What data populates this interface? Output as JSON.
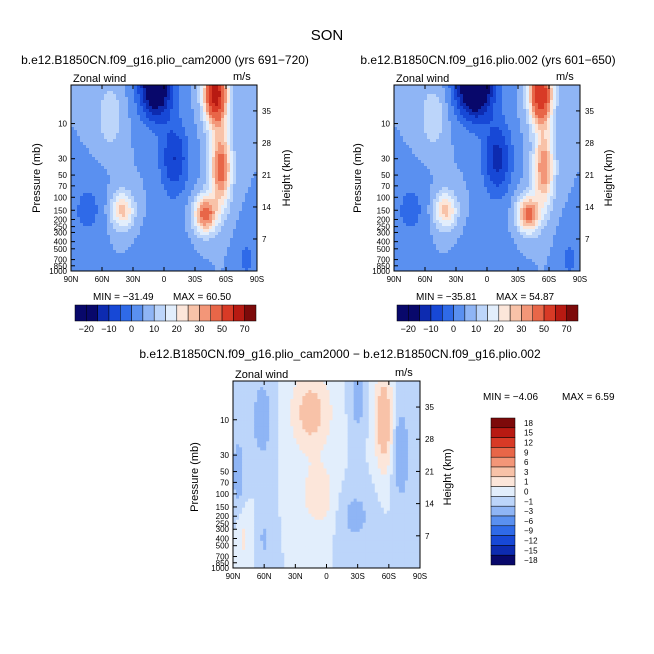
{
  "figure": {
    "title": "SON",
    "diff_title": "b.e12.B1850CN.f09_g16.plio_cam2000 − b.e12.B1850CN.f09_g16.plio.002"
  },
  "colors": {
    "full_palette": [
      "#08086b",
      "#0d2bb0",
      "#1748d6",
      "#2f6ae8",
      "#5a90f0",
      "#8fb5f5",
      "#bcd5fa",
      "#e2eefc",
      "#fce6da",
      "#f8c2a8",
      "#f39678",
      "#e86648",
      "#d83a26",
      "#b81a12",
      "#7d0a0a"
    ],
    "diff_palette": [
      "#08086b",
      "#0d2bb0",
      "#1748d6",
      "#2f6ae8",
      "#5a90f0",
      "#8fb5f5",
      "#bcd5fa",
      "#e2eefc",
      "#fce6da",
      "#f8c2a8",
      "#f39678",
      "#e86648",
      "#d83a26",
      "#b81a12",
      "#7d0a0a"
    ]
  },
  "chart_data": [
    {
      "type": "heatmap",
      "title": "b.e12.B1850CN.f09_g16.plio_cam2000 (yrs 691−720)",
      "left_label": "Zonal wind",
      "right_label": "m/s",
      "ylabel": "Pressure (mb)",
      "ylabel_right": "Height (km)",
      "x_ticks": [
        "90N",
        "60N",
        "30N",
        "0",
        "30S",
        "60S",
        "90S"
      ],
      "x_values": [
        90,
        60,
        30,
        0,
        -30,
        -60,
        -90
      ],
      "y_ticks": [
        "10",
        "30",
        "50",
        "70",
        "100",
        "150",
        "200",
        "250",
        "300",
        "400",
        "500",
        "700",
        "850",
        "1000"
      ],
      "y_values": [
        10,
        30,
        50,
        70,
        100,
        150,
        200,
        250,
        300,
        400,
        500,
        700,
        850,
        1000
      ],
      "y_range": [
        3,
        1000
      ],
      "height_ticks": [
        "35",
        "28",
        "21",
        "14",
        "7"
      ],
      "height_values": [
        35,
        28,
        21,
        14,
        7
      ],
      "min_label": "MIN =  −31.49",
      "max_label": "MAX =   60.50",
      "features": [
        {
          "lat": 74,
          "p": 150,
          "value": -7,
          "lat_width": 16,
          "logp_width": 0.4
        },
        {
          "lat": 52,
          "p": 8,
          "value": 10,
          "lat_width": 12,
          "logp_width": 0.4
        },
        {
          "lat": 40,
          "p": 150,
          "value": 22,
          "lat_width": 11,
          "logp_width": 0.25
        },
        {
          "lat": 0,
          "p": 600,
          "value": -3,
          "lat_width": 22,
          "logp_width": 0.5
        },
        {
          "lat": 8,
          "p": 3,
          "value": -32,
          "lat_width": 16,
          "logp_width": 0.45
        },
        {
          "lat": -10,
          "p": 30,
          "value": -15,
          "lat_width": 14,
          "logp_width": 0.5
        },
        {
          "lat": -50,
          "p": 4,
          "value": 56,
          "lat_width": 11,
          "logp_width": 0.4
        },
        {
          "lat": -55,
          "p": 40,
          "value": 35,
          "lat_width": 10,
          "logp_width": 0.5
        },
        {
          "lat": -40,
          "p": 170,
          "value": 34,
          "lat_width": 11,
          "logp_width": 0.25
        },
        {
          "lat": -80,
          "p": 700,
          "value": -6,
          "lat_width": 10,
          "logp_width": 0.4
        }
      ]
    },
    {
      "type": "heatmap",
      "title": "b.e12.B1850CN.f09_g16.plio.002 (yrs 601−650)",
      "left_label": "Zonal wind",
      "right_label": "m/s",
      "ylabel": "Pressure (mb)",
      "ylabel_right": "Height (km)",
      "x_ticks": [
        "90N",
        "60N",
        "30N",
        "0",
        "30S",
        "60S",
        "90S"
      ],
      "x_values": [
        90,
        60,
        30,
        0,
        -30,
        -60,
        -90
      ],
      "y_ticks": [
        "10",
        "30",
        "50",
        "70",
        "100",
        "150",
        "200",
        "250",
        "300",
        "400",
        "500",
        "700",
        "850",
        "1000"
      ],
      "y_values": [
        10,
        30,
        50,
        70,
        100,
        150,
        200,
        250,
        300,
        400,
        500,
        700,
        850,
        1000
      ],
      "y_range": [
        3,
        1000
      ],
      "height_ticks": [
        "35",
        "28",
        "21",
        "14",
        "7"
      ],
      "height_values": [
        35,
        28,
        21,
        14,
        7
      ],
      "min_label": "MIN =  −35.81",
      "max_label": "MAX =   54.87",
      "features": [
        {
          "lat": 74,
          "p": 150,
          "value": -7,
          "lat_width": 16,
          "logp_width": 0.4
        },
        {
          "lat": 52,
          "p": 8,
          "value": 10,
          "lat_width": 12,
          "logp_width": 0.4
        },
        {
          "lat": 40,
          "p": 150,
          "value": 22,
          "lat_width": 11,
          "logp_width": 0.25
        },
        {
          "lat": 0,
          "p": 600,
          "value": -3,
          "lat_width": 22,
          "logp_width": 0.5
        },
        {
          "lat": 12,
          "p": 3,
          "value": -36,
          "lat_width": 18,
          "logp_width": 0.45
        },
        {
          "lat": -10,
          "p": 30,
          "value": -17,
          "lat_width": 14,
          "logp_width": 0.5
        },
        {
          "lat": -52,
          "p": 4,
          "value": 50,
          "lat_width": 11,
          "logp_width": 0.4
        },
        {
          "lat": -55,
          "p": 40,
          "value": 30,
          "lat_width": 10,
          "logp_width": 0.5
        },
        {
          "lat": -40,
          "p": 170,
          "value": 32,
          "lat_width": 11,
          "logp_width": 0.25
        },
        {
          "lat": -80,
          "p": 700,
          "value": -6,
          "lat_width": 10,
          "logp_width": 0.4
        }
      ]
    },
    {
      "type": "heatmap",
      "title": "",
      "left_label": "Zonal wind",
      "right_label": "m/s",
      "ylabel": "Pressure (mb)",
      "ylabel_right": "Height (km)",
      "x_ticks": [
        "90N",
        "60N",
        "30N",
        "0",
        "30S",
        "60S",
        "90S"
      ],
      "x_values": [
        90,
        60,
        30,
        0,
        -30,
        -60,
        -90
      ],
      "y_ticks": [
        "10",
        "30",
        "50",
        "70",
        "100",
        "150",
        "200",
        "250",
        "300",
        "400",
        "500",
        "700",
        "850",
        "1000"
      ],
      "y_values": [
        10,
        30,
        50,
        70,
        100,
        150,
        200,
        250,
        300,
        400,
        500,
        700,
        850,
        1000
      ],
      "y_range": [
        3,
        1000
      ],
      "height_ticks": [
        "35",
        "28",
        "21",
        "14",
        "7"
      ],
      "height_values": [
        35,
        28,
        21,
        14,
        7
      ],
      "min_label": "MIN =   −4.06",
      "max_label": "MAX =    6.59",
      "features": [
        {
          "lat": 62,
          "p": 10,
          "value": -2.5,
          "lat_width": 8,
          "logp_width": 0.45
        },
        {
          "lat": 15,
          "p": 8,
          "value": 4.5,
          "lat_width": 16,
          "logp_width": 0.45
        },
        {
          "lat": 8,
          "p": 100,
          "value": 2.2,
          "lat_width": 14,
          "logp_width": 0.4
        },
        {
          "lat": -28,
          "p": 200,
          "value": -1.5,
          "lat_width": 14,
          "logp_width": 0.35
        },
        {
          "lat": -30,
          "p": 5,
          "value": -2.2,
          "lat_width": 6,
          "logp_width": 0.4
        },
        {
          "lat": -55,
          "p": 10,
          "value": 6.0,
          "lat_width": 7,
          "logp_width": 0.55
        },
        {
          "lat": -72,
          "p": 30,
          "value": -2.5,
          "lat_width": 7,
          "logp_width": 0.55
        },
        {
          "lat": 85,
          "p": 50,
          "value": -1.8,
          "lat_width": 6,
          "logp_width": 0.5
        },
        {
          "lat": 60,
          "p": 400,
          "value": -1.2,
          "lat_width": 6,
          "logp_width": 0.35
        },
        {
          "lat": 80,
          "p": 400,
          "value": 1.2,
          "lat_width": 6,
          "logp_width": 0.35
        }
      ]
    }
  ],
  "legends": {
    "full": {
      "levels": [
        -25,
        -20,
        -15,
        -10,
        -5,
        0,
        5,
        10,
        15,
        20,
        25,
        30,
        40,
        50,
        60,
        70
      ],
      "labels": [
        "−20",
        "−10",
        "0",
        "10",
        "20",
        "30",
        "50",
        "70"
      ]
    },
    "diff": {
      "levels": [
        -18,
        -15,
        -12,
        -9,
        -6,
        -3,
        -1,
        0,
        1,
        3,
        6,
        9,
        12,
        15,
        18
      ],
      "labels": [
        "18",
        "15",
        "12",
        "9",
        "6",
        "3",
        "1",
        "0",
        "−1",
        "−3",
        "−6",
        "−9",
        "−12",
        "−15",
        "−18"
      ]
    }
  }
}
